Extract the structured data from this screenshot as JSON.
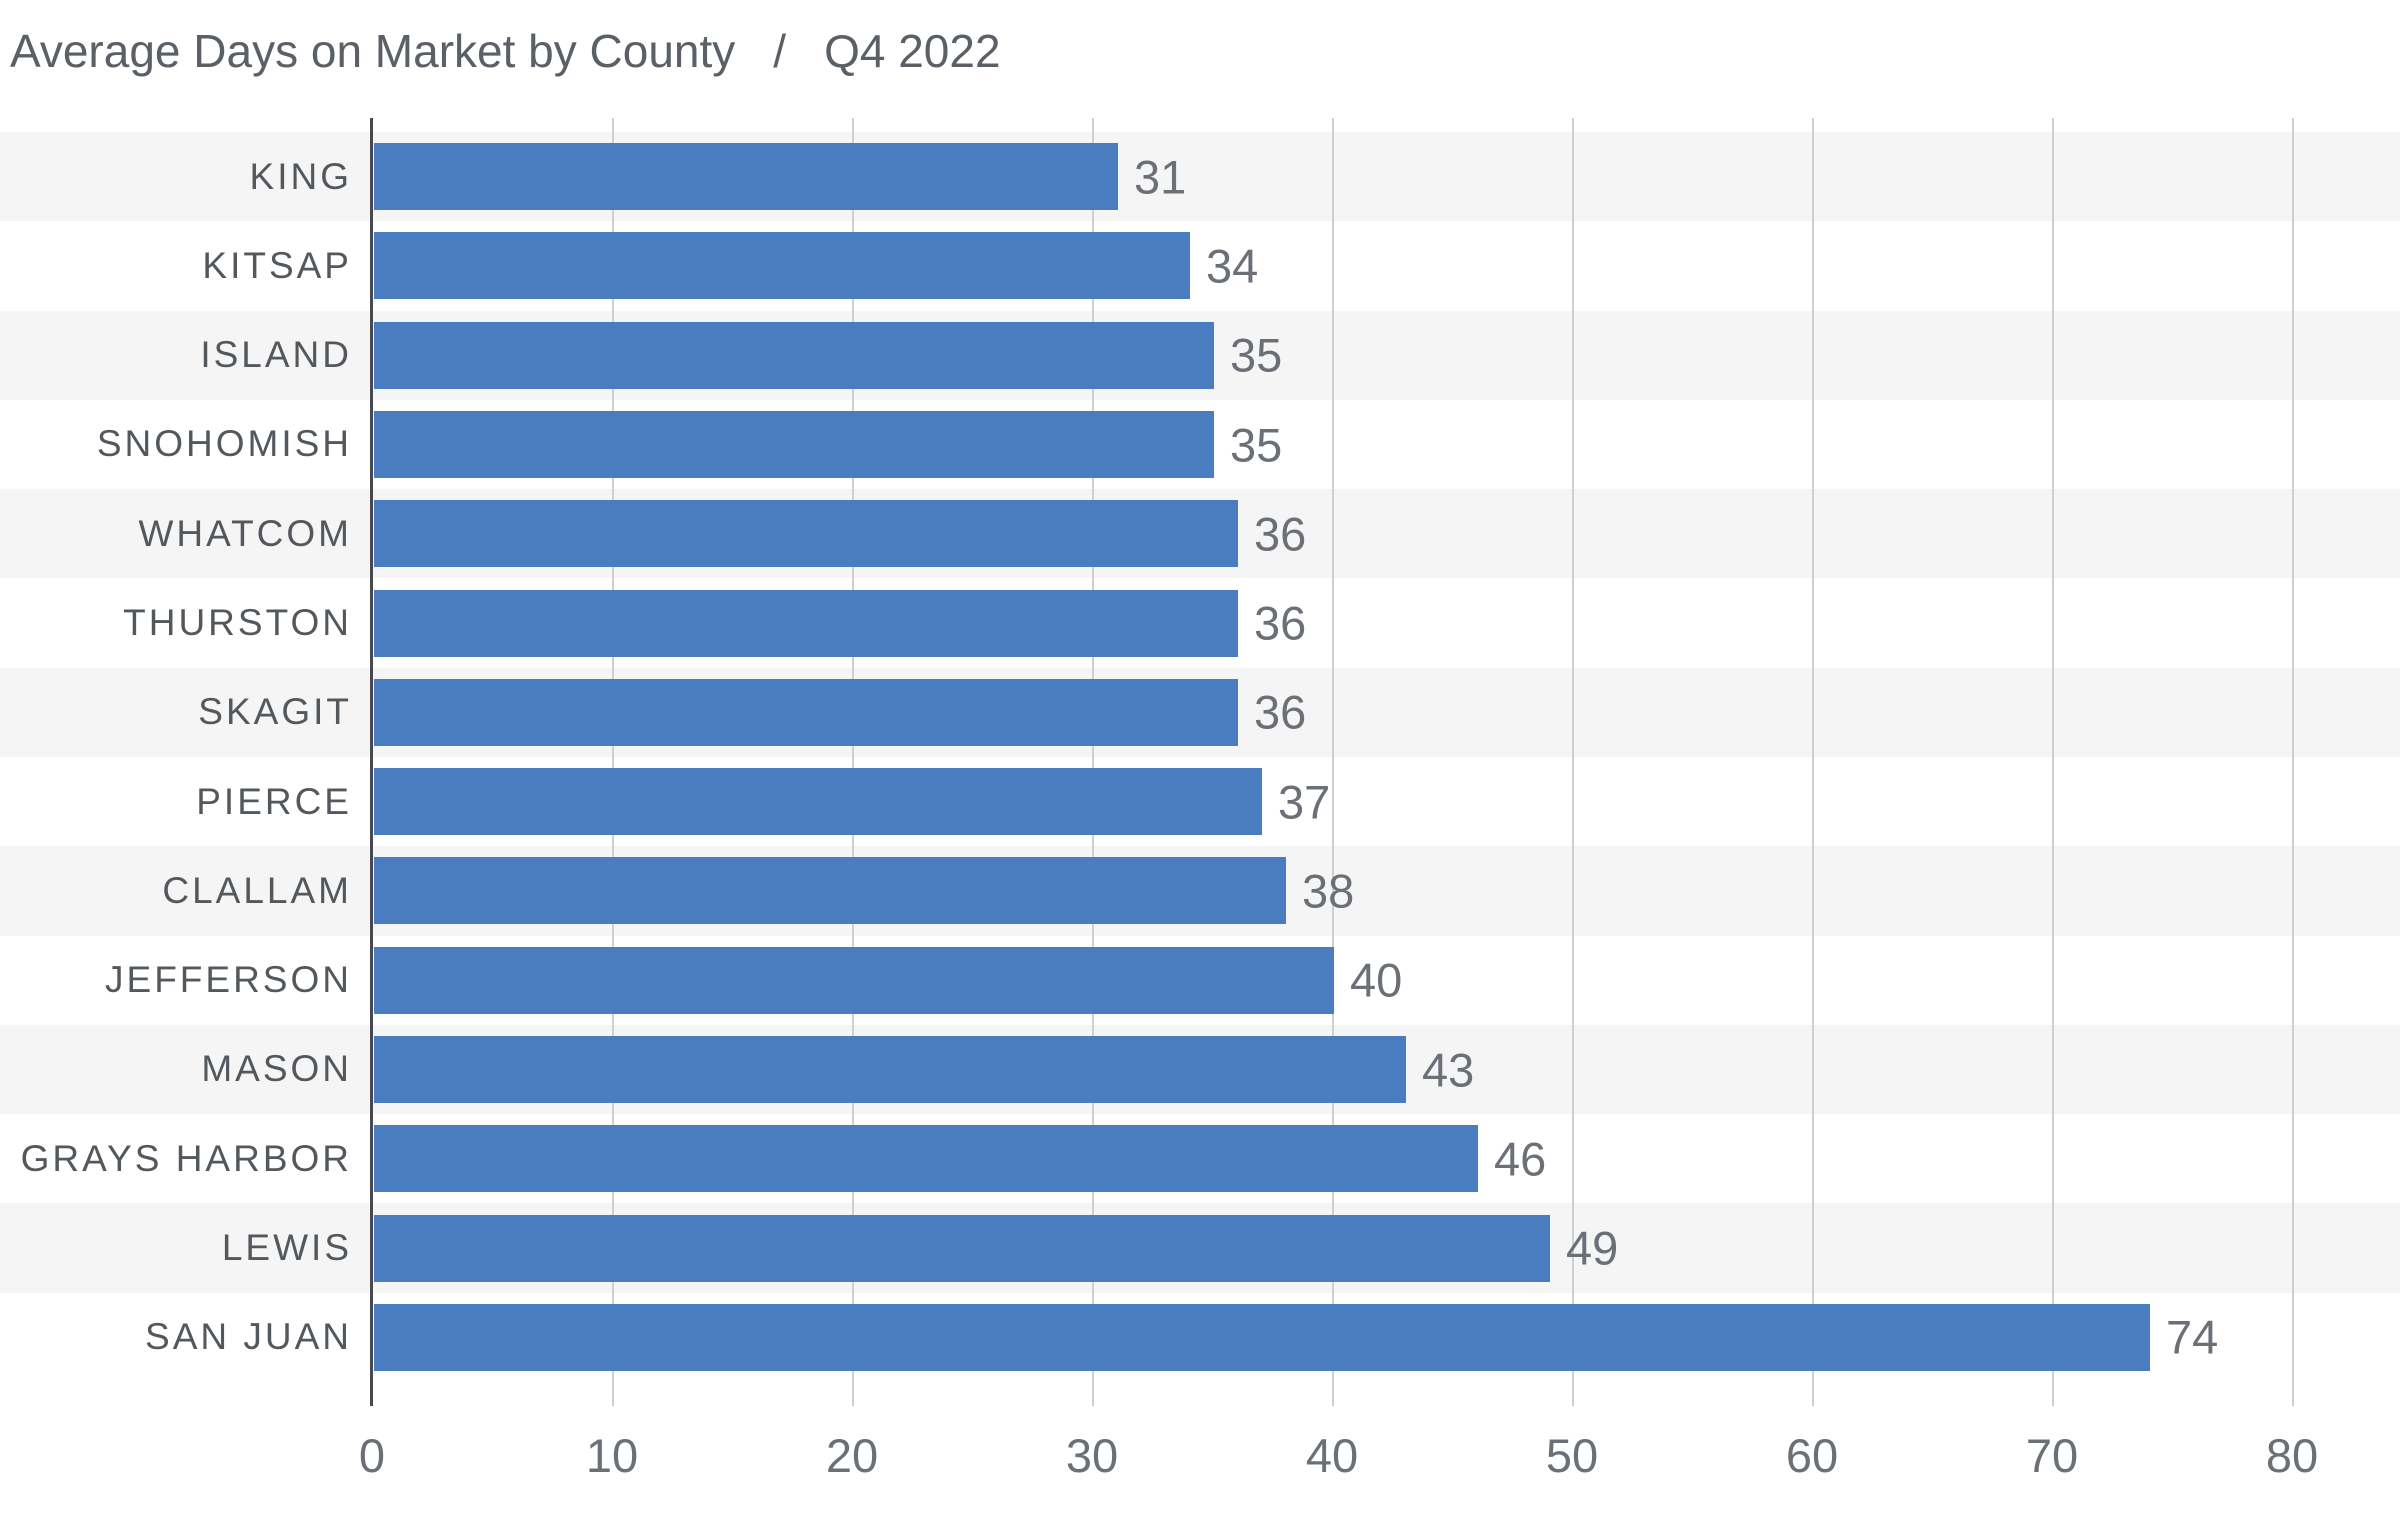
{
  "title": {
    "main": "Average Days on Market by County",
    "separator": "/",
    "period": "Q4 2022"
  },
  "chart_data": {
    "type": "bar",
    "orientation": "horizontal",
    "title": "Average Days on Market by County / Q4 2022",
    "xlabel": "",
    "ylabel": "",
    "categories": [
      "KING",
      "KITSAP",
      "ISLAND",
      "SNOHOMISH",
      "WHATCOM",
      "THURSTON",
      "SKAGIT",
      "PIERCE",
      "CLALLAM",
      "JEFFERSON",
      "MASON",
      "GRAYS HARBOR",
      "LEWIS",
      "SAN JUAN"
    ],
    "values": [
      31,
      34,
      35,
      35,
      36,
      36,
      36,
      37,
      38,
      40,
      43,
      46,
      49,
      74
    ],
    "xlim": [
      0,
      80
    ],
    "x_ticks": [
      0,
      10,
      20,
      30,
      40,
      50,
      60,
      70,
      80
    ],
    "grid": "vertical",
    "row_striping": true,
    "data_labels": "outside-end",
    "legend": "none"
  },
  "colors": {
    "bar": "#4a7cc0",
    "stripe": "#f5f5f6",
    "gridline": "#cfcfcf",
    "axis": "#46494d",
    "title": "#5a6066",
    "category": "#53585d",
    "value": "#6b7076",
    "tick": "#6b7076"
  }
}
